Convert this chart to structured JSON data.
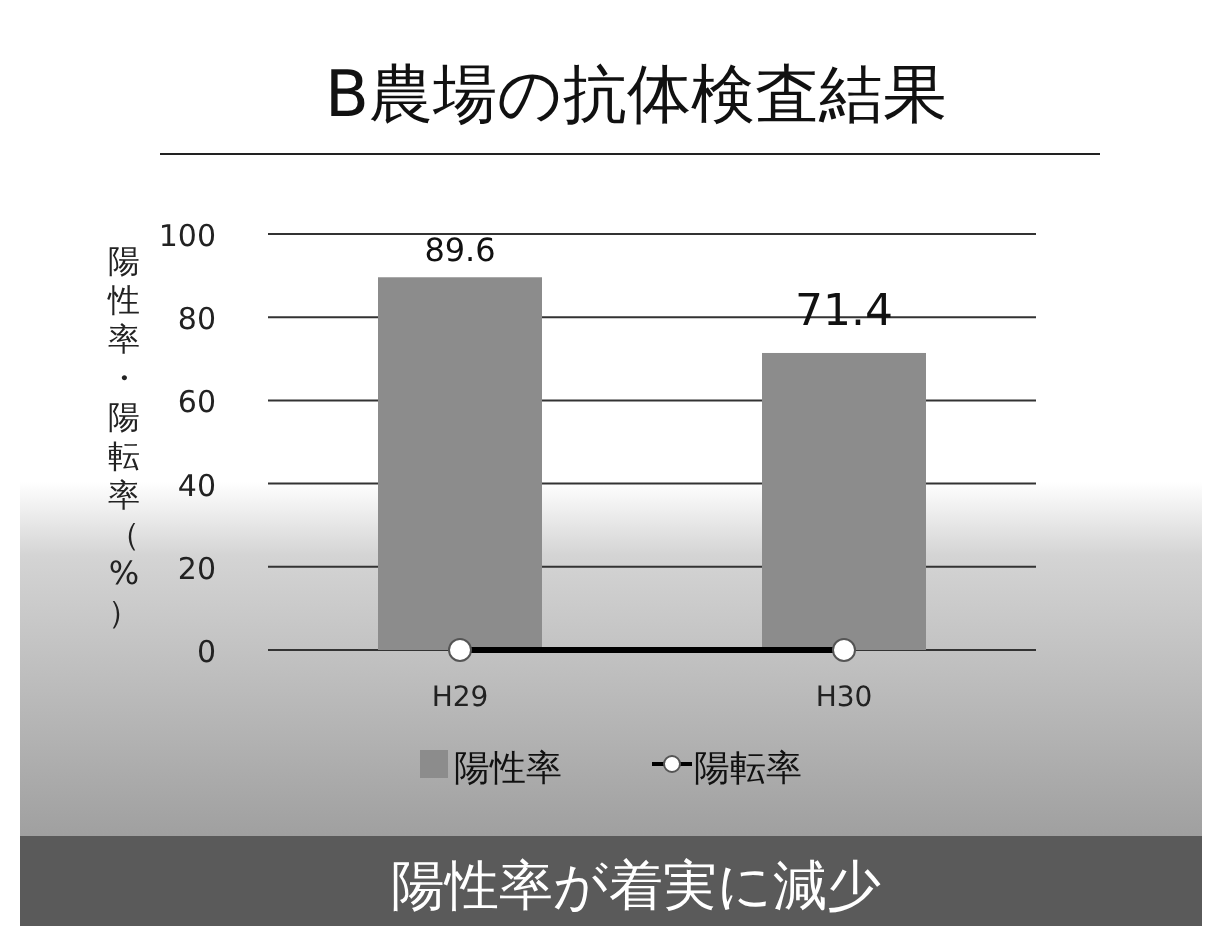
{
  "chart_data": {
    "type": "bar",
    "title": "B農場の抗体検査結果",
    "ylabel": "陽性率・陽転率（%）",
    "categories": [
      "H29",
      "H30"
    ],
    "series": [
      {
        "name": "陽性率",
        "color": "#8c8c8c",
        "values": [
          89.6,
          71.4
        ],
        "value_labels": [
          "89.6",
          "71.4"
        ]
      },
      {
        "name": "陽転率",
        "type": "line",
        "color": "#000000",
        "values": [
          0,
          0
        ]
      }
    ],
    "marker": "circle",
    "line_style": "solid",
    "ylim": [
      0,
      100
    ],
    "yticks": [
      0,
      20,
      40,
      60,
      80,
      100
    ],
    "grid": "y",
    "legend": "bottom",
    "annotations": [
      "陽性率が着実に減少"
    ]
  }
}
